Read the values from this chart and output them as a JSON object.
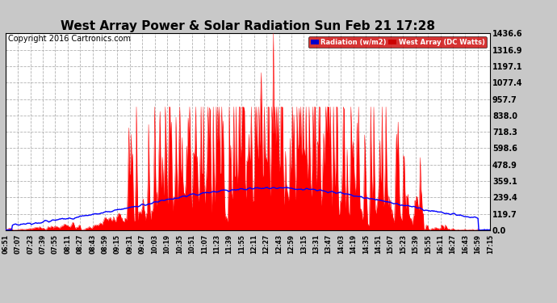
{
  "title": "West Array Power & Solar Radiation Sun Feb 21 17:28",
  "copyright": "Copyright 2016 Cartronics.com",
  "background_color": "#c8c8c8",
  "plot_bg_color": "#ffffff",
  "y_ticks": [
    0.0,
    119.7,
    239.4,
    359.1,
    478.9,
    598.6,
    718.3,
    838.0,
    957.7,
    1077.4,
    1197.1,
    1316.9,
    1436.6
  ],
  "x_tick_labels": [
    "06:51",
    "07:07",
    "07:23",
    "07:39",
    "07:55",
    "08:11",
    "08:27",
    "08:43",
    "08:59",
    "09:15",
    "09:31",
    "09:47",
    "10:03",
    "10:19",
    "10:35",
    "10:51",
    "11:07",
    "11:23",
    "11:39",
    "11:55",
    "12:11",
    "12:27",
    "12:43",
    "12:59",
    "13:15",
    "13:31",
    "13:47",
    "14:03",
    "14:19",
    "14:35",
    "14:51",
    "15:07",
    "15:23",
    "15:39",
    "15:55",
    "16:11",
    "16:27",
    "16:43",
    "16:59",
    "17:15"
  ],
  "red_fill_color": "#ff0000",
  "blue_line_color": "#0000ff",
  "legend_radiation_color": "#0000cc",
  "legend_west_color": "#cc0000",
  "grid_color": "#aaaaaa",
  "title_color": "#000000",
  "title_fontsize": 11,
  "copyright_fontsize": 7,
  "y_max": 1436.6
}
